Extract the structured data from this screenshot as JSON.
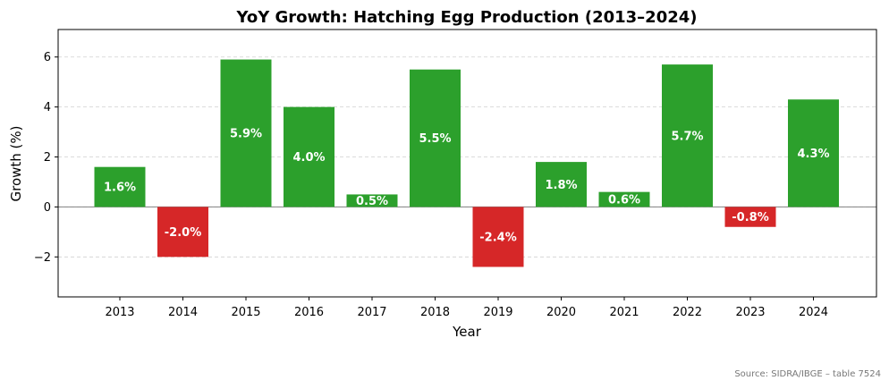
{
  "chart_data": {
    "type": "bar",
    "title": "YoY Growth: Hatching Egg Production (2013–2024)",
    "xlabel": "Year",
    "ylabel": "Growth (%)",
    "categories": [
      "2013",
      "2014",
      "2015",
      "2016",
      "2017",
      "2018",
      "2019",
      "2020",
      "2021",
      "2022",
      "2023",
      "2024"
    ],
    "values": [
      1.6,
      -2.0,
      5.9,
      4.0,
      0.5,
      5.5,
      -2.4,
      1.8,
      0.6,
      5.7,
      -0.8,
      4.3
    ],
    "value_labels": [
      "1.6%",
      "-2.0%",
      "5.9%",
      "4.0%",
      "0.5%",
      "5.5%",
      "-2.4%",
      "1.8%",
      "0.6%",
      "5.7%",
      "-0.8%",
      "4.3%"
    ],
    "ylim": [
      -3.6,
      7.1
    ],
    "yticks": [
      -2,
      0,
      2,
      4,
      6
    ],
    "ytick_labels": [
      "−2",
      "0",
      "2",
      "4",
      "6"
    ],
    "grid": "horizontal dashed",
    "colors": {
      "positive": "#2ca02c",
      "negative": "#d62728",
      "zero_line": "#808080",
      "grid": "#d0d0d0"
    }
  },
  "footer": {
    "source": "Source: SIDRA/IBGE – table 7524"
  }
}
